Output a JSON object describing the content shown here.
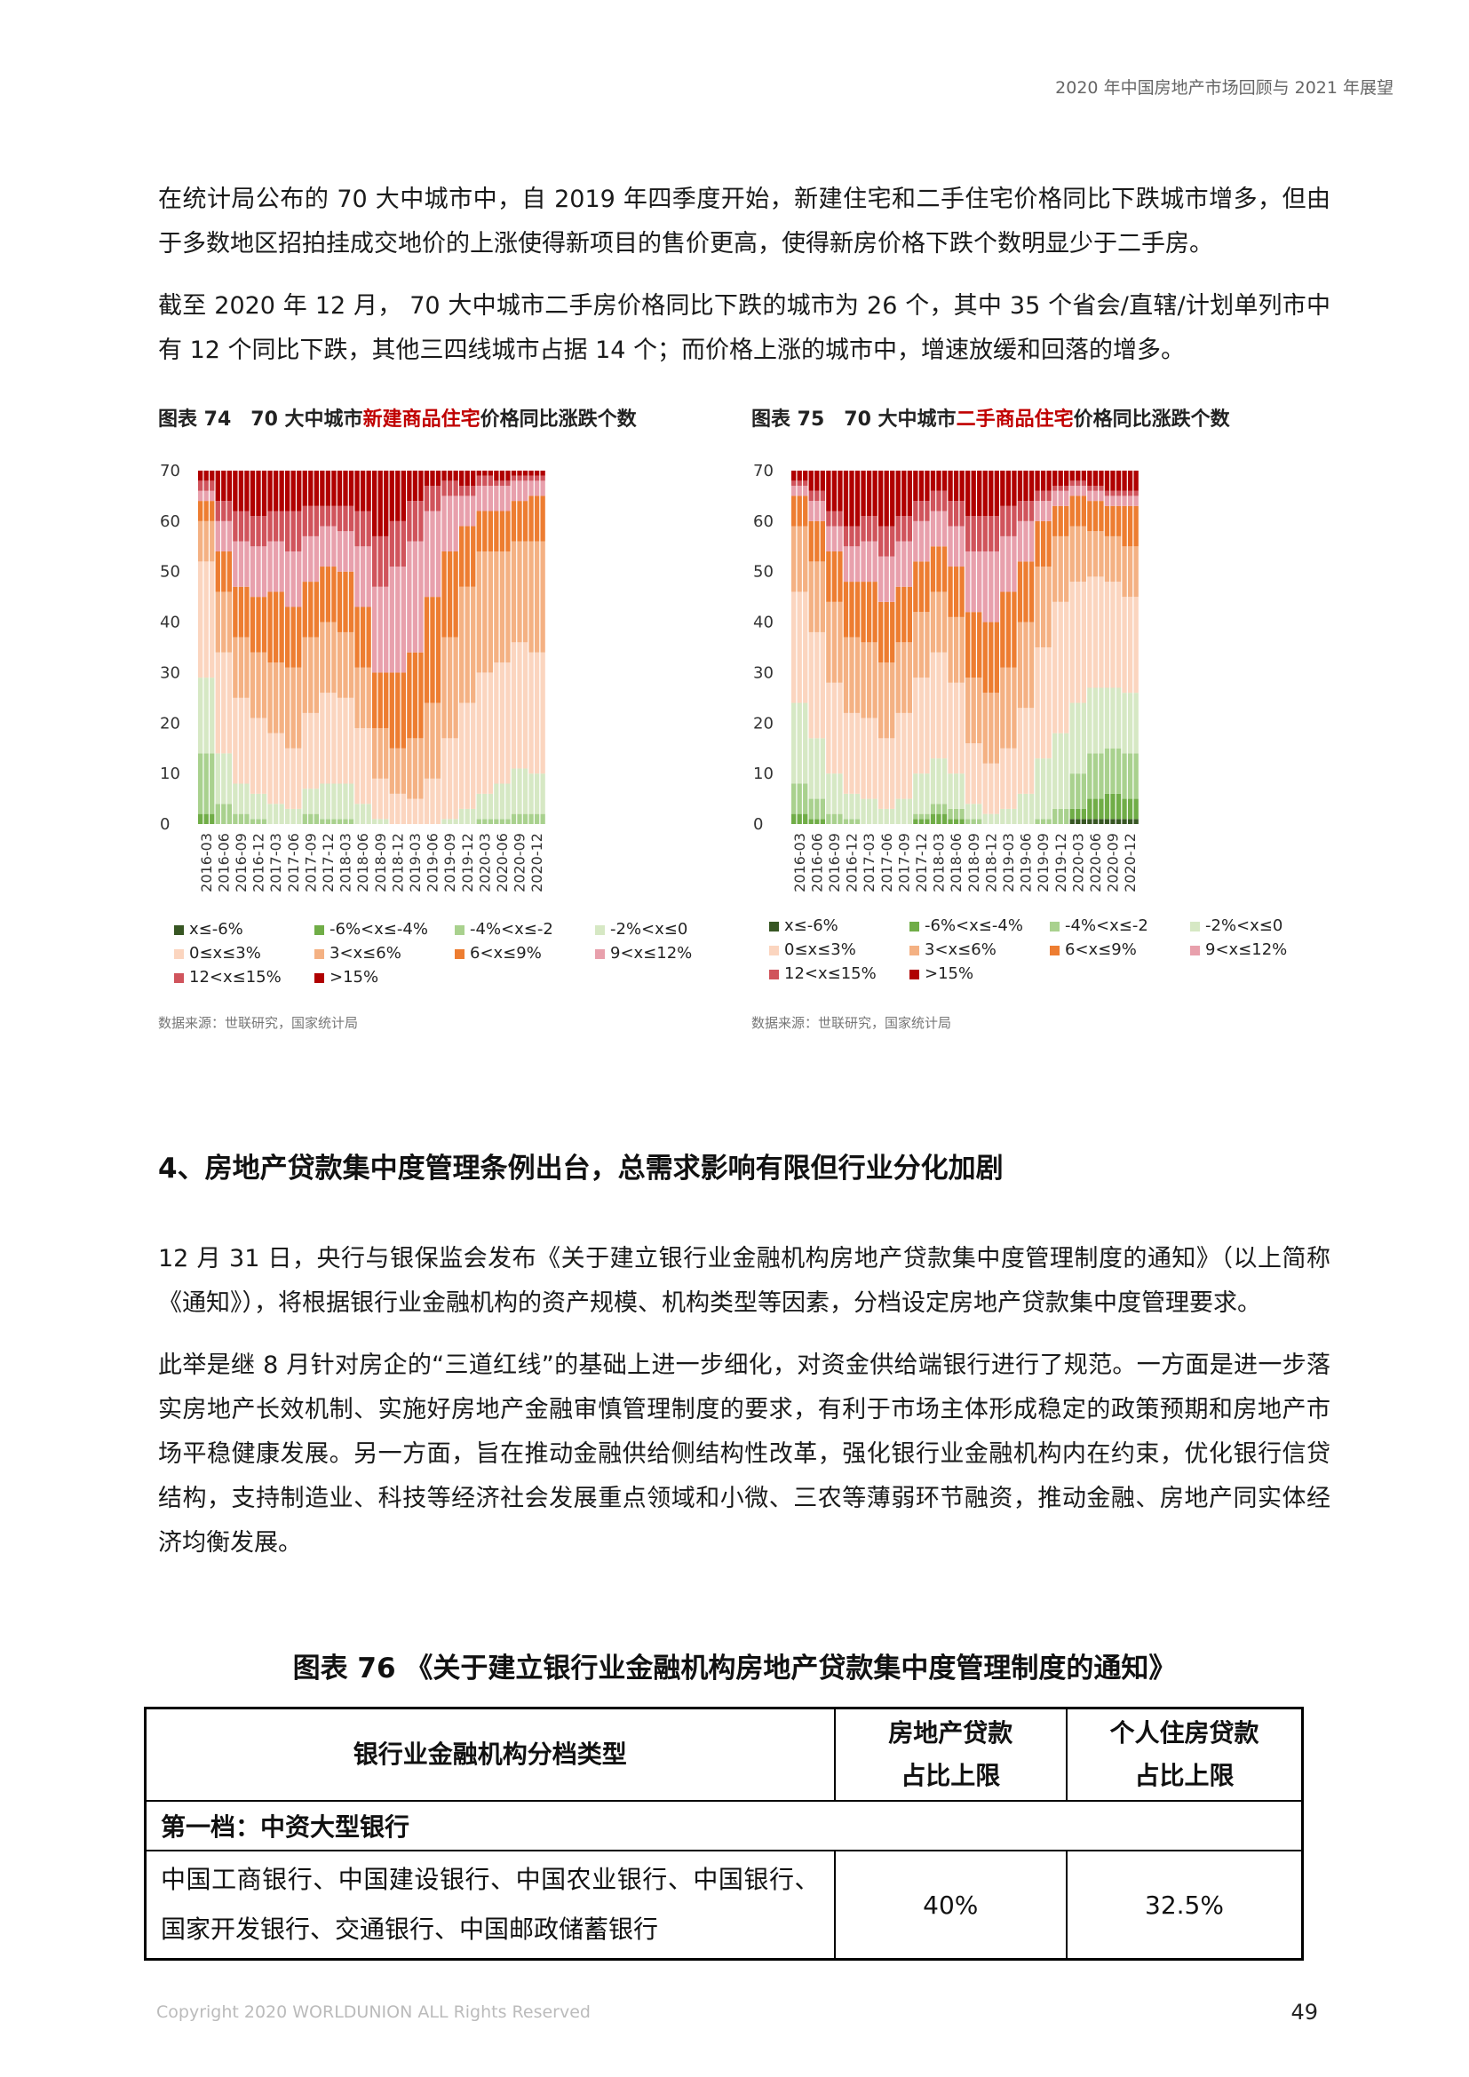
{
  "header": {
    "running_title": "2020 年中国房地产市场回顾与 2021 年展望"
  },
  "intro": {
    "p1": "在统计局公布的 70 大中城市中，自 2019 年四季度开始，新建住宅和二手住宅价格同比下跌城市增多，但由于多数地区招拍挂成交地价的上涨使得新项目的售价更高，使得新房价格下跌个数明显少于二手房。",
    "p2": "截至 2020 年 12 月， 70 大中城市二手房价格同比下跌的城市为 26 个，其中 35 个省会/直辖/计划单列市中有 12 个同比下跌，其他三四线城市占据 14 个；而价格上涨的城市中，增速放缓和回落的增多。"
  },
  "fig74": {
    "prefix": "图表 74　70 大中城市",
    "highlight": "新建商品住宅",
    "suffix": "价格同比涨跌个数",
    "source": "数据来源：世联研究，国家统计局"
  },
  "fig75": {
    "prefix": "图表 75　70 大中城市",
    "highlight": "二手商品住宅",
    "suffix": "价格同比涨跌个数",
    "source": "数据来源：世联研究，国家统计局"
  },
  "legend": [
    {
      "label": "x≤-6%",
      "color": "#375623"
    },
    {
      "label": "-6%<x≤-4%",
      "color": "#70ad47"
    },
    {
      "label": "-4%<x≤-2",
      "color": "#a9d18e"
    },
    {
      "label": "-2%<x≤0",
      "color": "#d6e8c4"
    },
    {
      "label": "0≤x≤3%",
      "color": "#fbd5bf"
    },
    {
      "label": "3<x≤6%",
      "color": "#f4b183"
    },
    {
      "label": "6<x≤9%",
      "color": "#ed7d31"
    },
    {
      "label": "9<x≤12%",
      "color": "#e8a0ac"
    },
    {
      "label": "12<x≤15%",
      "color": "#d0545c"
    },
    {
      "label": ">15%",
      "color": "#b00000"
    }
  ],
  "chart_data": [
    {
      "type": "bar",
      "stacked": true,
      "title": "图表 74 70 大中城市新建商品住宅价格同比涨跌个数",
      "ylim": [
        0,
        70
      ],
      "yticks": [
        0,
        10,
        20,
        30,
        40,
        50,
        60,
        70
      ],
      "xtick_labels": [
        "2016-03",
        "2016-06",
        "2016-09",
        "2016-12",
        "2017-03",
        "2017-06",
        "2017-09",
        "2017-12",
        "2018-03",
        "2018-06",
        "2018-09",
        "2018-12",
        "2019-03",
        "2019-06",
        "2019-09",
        "2019-12",
        "2020-03",
        "2020-06",
        "2020-09",
        "2020-12"
      ],
      "categories": [
        "2016-03",
        "2016-06",
        "2016-09",
        "2016-12",
        "2017-03",
        "2017-06",
        "2017-09",
        "2017-12",
        "2018-03",
        "2018-06",
        "2018-09",
        "2018-12",
        "2019-03",
        "2019-06",
        "2019-09",
        "2019-12",
        "2020-03",
        "2020-06",
        "2020-09",
        "2020-12"
      ],
      "series": [
        {
          "name": "x≤-6%",
          "values": [
            0,
            0,
            0,
            0,
            0,
            0,
            0,
            0,
            0,
            0,
            0,
            0,
            0,
            0,
            0,
            0,
            0,
            0,
            0,
            0
          ]
        },
        {
          "name": "-6%<x≤-4%",
          "values": [
            2,
            0,
            0,
            0,
            0,
            0,
            0,
            0,
            0,
            0,
            0,
            0,
            0,
            0,
            0,
            0,
            0,
            0,
            0,
            0
          ]
        },
        {
          "name": "-4%<x≤-2",
          "values": [
            12,
            4,
            2,
            1,
            0,
            0,
            2,
            1,
            1,
            0,
            0,
            0,
            0,
            0,
            0,
            0,
            1,
            1,
            2,
            2
          ]
        },
        {
          "name": "-2%<x≤0",
          "values": [
            15,
            10,
            6,
            5,
            4,
            3,
            5,
            7,
            7,
            4,
            1,
            0,
            0,
            0,
            1,
            3,
            5,
            7,
            9,
            8
          ]
        },
        {
          "name": "0≤x≤3%",
          "values": [
            23,
            20,
            17,
            15,
            14,
            12,
            15,
            18,
            17,
            15,
            8,
            6,
            5,
            9,
            16,
            21,
            24,
            24,
            25,
            24
          ]
        },
        {
          "name": "3<x≤6%",
          "values": [
            8,
            12,
            12,
            13,
            14,
            16,
            15,
            14,
            13,
            12,
            10,
            9,
            12,
            15,
            20,
            23,
            24,
            22,
            20,
            22
          ]
        },
        {
          "name": "6<x≤9%",
          "values": [
            4,
            8,
            10,
            11,
            14,
            12,
            11,
            11,
            12,
            12,
            11,
            15,
            17,
            21,
            17,
            12,
            8,
            8,
            8,
            9
          ]
        },
        {
          "name": "9<x≤12%",
          "values": [
            2,
            6,
            9,
            10,
            10,
            11,
            9,
            8,
            8,
            12,
            17,
            21,
            22,
            17,
            11,
            6,
            5,
            5,
            4,
            3
          ]
        },
        {
          "name": "12<x≤15%",
          "values": [
            2,
            4,
            6,
            6,
            6,
            8,
            6,
            4,
            5,
            7,
            10,
            9,
            8,
            5,
            3,
            2,
            2,
            1,
            1,
            1
          ]
        },
        {
          "name": ">15%",
          "values": [
            2,
            6,
            8,
            9,
            8,
            8,
            7,
            7,
            7,
            8,
            13,
            10,
            6,
            3,
            2,
            3,
            1,
            2,
            1,
            1
          ]
        }
      ],
      "source": "数据来源：世联研究，国家统计局"
    },
    {
      "type": "bar",
      "stacked": true,
      "title": "图表 75 70 大中城市二手商品住宅价格同比涨跌个数",
      "ylim": [
        0,
        70
      ],
      "yticks": [
        0,
        10,
        20,
        30,
        40,
        50,
        60,
        70
      ],
      "xtick_labels": [
        "2016-03",
        "2016-06",
        "2016-09",
        "2016-12",
        "2017-03",
        "2017-06",
        "2017-09",
        "2017-12",
        "2018-03",
        "2018-06",
        "2018-09",
        "2018-12",
        "2019-03",
        "2019-06",
        "2019-09",
        "2019-12",
        "2020-03",
        "2020-06",
        "2020-09",
        "2020-12"
      ],
      "categories": [
        "2016-03",
        "2016-06",
        "2016-09",
        "2016-12",
        "2017-03",
        "2017-06",
        "2017-09",
        "2017-12",
        "2018-03",
        "2018-06",
        "2018-09",
        "2018-12",
        "2019-03",
        "2019-06",
        "2019-09",
        "2019-12",
        "2020-03",
        "2020-06",
        "2020-09",
        "2020-12"
      ],
      "series": [
        {
          "name": "x≤-6%",
          "values": [
            0,
            0,
            0,
            0,
            0,
            0,
            0,
            0,
            0,
            0,
            0,
            0,
            0,
            0,
            0,
            0,
            1,
            1,
            1,
            1
          ]
        },
        {
          "name": "-6%<x≤-4%",
          "values": [
            2,
            1,
            0,
            0,
            0,
            0,
            0,
            1,
            2,
            1,
            0,
            0,
            0,
            0,
            0,
            0,
            2,
            4,
            5,
            4
          ]
        },
        {
          "name": "-4%<x≤-2",
          "values": [
            6,
            4,
            2,
            1,
            0,
            0,
            0,
            1,
            2,
            2,
            1,
            0,
            0,
            0,
            1,
            3,
            7,
            9,
            9,
            9
          ]
        },
        {
          "name": "-2%<x≤0",
          "values": [
            16,
            12,
            8,
            5,
            5,
            3,
            5,
            8,
            9,
            7,
            3,
            2,
            3,
            6,
            12,
            15,
            14,
            13,
            12,
            12
          ]
        },
        {
          "name": "0≤x≤3%",
          "values": [
            22,
            21,
            18,
            16,
            16,
            14,
            17,
            19,
            21,
            18,
            12,
            10,
            12,
            17,
            22,
            26,
            24,
            22,
            21,
            19
          ]
        },
        {
          "name": "3<x≤6%",
          "values": [
            13,
            14,
            16,
            15,
            15,
            15,
            14,
            13,
            12,
            13,
            13,
            14,
            16,
            17,
            16,
            13,
            11,
            9,
            9,
            10
          ]
        },
        {
          "name": "6<x≤9%",
          "values": [
            6,
            8,
            10,
            11,
            12,
            12,
            11,
            10,
            9,
            10,
            13,
            14,
            15,
            12,
            9,
            6,
            6,
            6,
            6,
            8
          ]
        },
        {
          "name": "9<x≤12%",
          "values": [
            2,
            4,
            5,
            7,
            8,
            9,
            9,
            8,
            7,
            8,
            12,
            14,
            11,
            8,
            4,
            3,
            2,
            2,
            2,
            2
          ]
        },
        {
          "name": "12<x≤15%",
          "values": [
            1,
            2,
            3,
            4,
            5,
            6,
            5,
            4,
            4,
            5,
            7,
            7,
            6,
            4,
            2,
            1,
            1,
            1,
            1,
            1
          ]
        },
        {
          "name": ">15%",
          "values": [
            2,
            4,
            8,
            11,
            9,
            11,
            9,
            6,
            4,
            6,
            9,
            9,
            7,
            6,
            4,
            3,
            2,
            3,
            4,
            4
          ]
        }
      ],
      "source": "数据来源：世联研究，国家统计局"
    }
  ],
  "section4": {
    "title": "4、房地产贷款集中度管理条例出台，总需求影响有限但行业分化加剧",
    "p1": "12 月 31 日，央行与银保监会发布《关于建立银行业金融机构房地产贷款集中度管理制度的通知》（以上简称《通知》），将根据银行业金融机构的资产规模、机构类型等因素，分档设定房地产贷款集中度管理要求。",
    "p2": "此举是继 8 月针对房企的“三道红线”的基础上进一步细化，对资金供给端银行进行了规范。一方面是进一步落实房地产长效机制、实施好房地产金融审慎管理制度的要求，有利于市场主体形成稳定的政策预期和房地产市场平稳健康发展。另一方面，旨在推动金融供给侧结构性改革，强化银行业金融机构内在约束，优化银行信贷结构，支持制造业、科技等经济社会发展重点领域和小微、三农等薄弱环节融资，推动金融、房地产同实体经济均衡发展。"
  },
  "table76": {
    "title": "图表 76 《关于建立银行业金融机构房地产贷款集中度管理制度的通知》",
    "col1": "银行业金融机构分档类型",
    "col2_l1": "房地产贷款",
    "col2_l2": "占比上限",
    "col3_l1": "个人住房贷款",
    "col3_l2": "占比上限",
    "tier1": "第一档：中资大型银行",
    "tier1_banks": "中国工商银行、中国建设银行、中国农业银行、中国银行、国家开发银行、交通银行、中国邮政储蓄银行",
    "tier1_re_cap": "40%",
    "tier1_mortgage_cap": "32.5%"
  },
  "footer": {
    "copyright": "Copyright 2020 WORLDUNION ALL Rights Reserved",
    "page_number": "49"
  }
}
